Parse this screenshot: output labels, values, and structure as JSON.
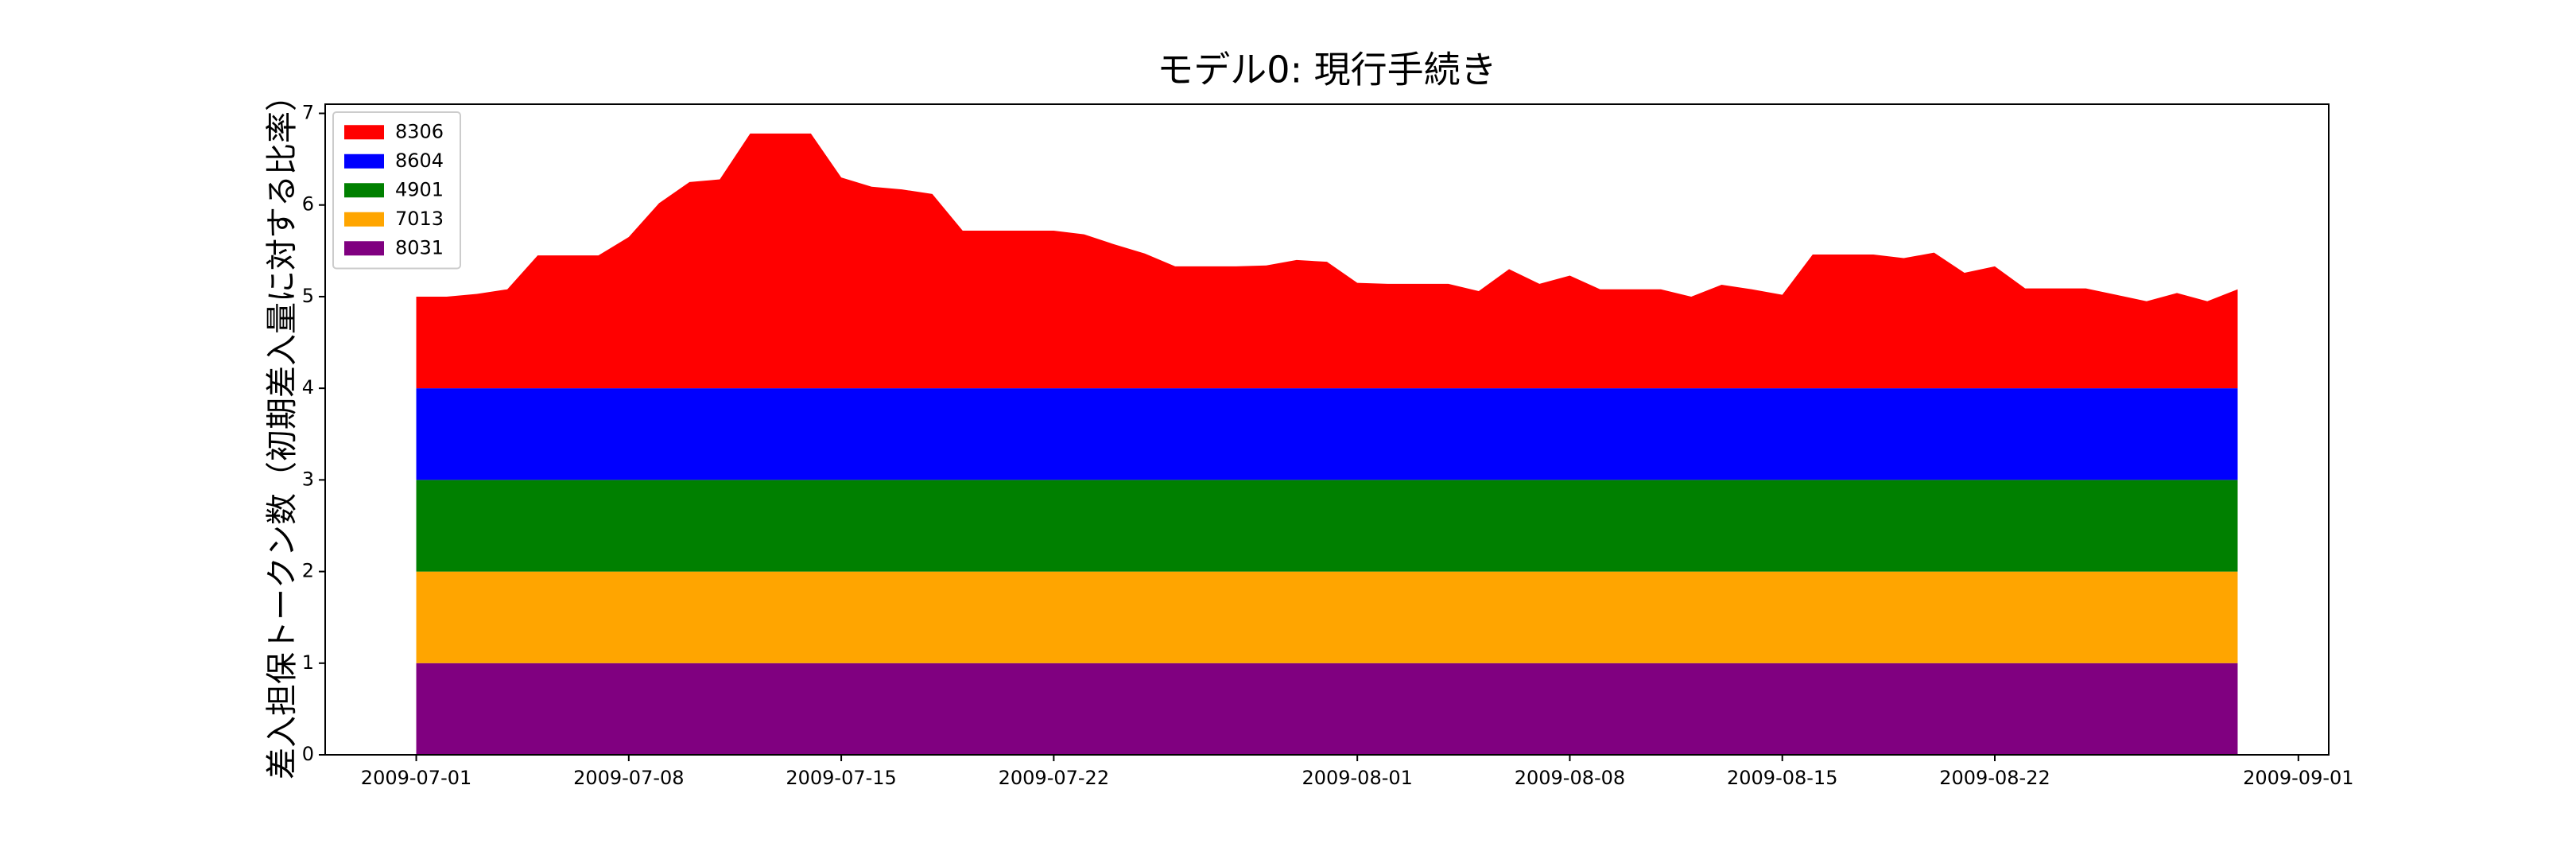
{
  "chart_data": {
    "type": "stackedarea",
    "title": "モデル0: 現行手続き",
    "y_label": "差入担保トークン数（初期差入量に対する比率）",
    "x": [
      "2009-07-01",
      "2009-07-02",
      "2009-07-03",
      "2009-07-04",
      "2009-07-05",
      "2009-07-06",
      "2009-07-07",
      "2009-07-08",
      "2009-07-09",
      "2009-07-10",
      "2009-07-11",
      "2009-07-12",
      "2009-07-13",
      "2009-07-14",
      "2009-07-15",
      "2009-07-16",
      "2009-07-17",
      "2009-07-18",
      "2009-07-19",
      "2009-07-20",
      "2009-07-21",
      "2009-07-22",
      "2009-07-23",
      "2009-07-24",
      "2009-07-25",
      "2009-07-26",
      "2009-07-27",
      "2009-07-28",
      "2009-07-29",
      "2009-07-30",
      "2009-07-31",
      "2009-08-01",
      "2009-08-02",
      "2009-08-03",
      "2009-08-04",
      "2009-08-05",
      "2009-08-06",
      "2009-08-07",
      "2009-08-08",
      "2009-08-09",
      "2009-08-10",
      "2009-08-11",
      "2009-08-12",
      "2009-08-13",
      "2009-08-14",
      "2009-08-15",
      "2009-08-16",
      "2009-08-17",
      "2009-08-18",
      "2009-08-19",
      "2009-08-20",
      "2009-08-21",
      "2009-08-22",
      "2009-08-23",
      "2009-08-24",
      "2009-08-25",
      "2009-08-26",
      "2009-08-27",
      "2009-08-28",
      "2009-08-29",
      "2009-08-30"
    ],
    "series": [
      {
        "name": "8306",
        "color": "#ff0000",
        "values": [
          1.0,
          1.0,
          1.03,
          1.08,
          1.45,
          1.45,
          1.45,
          1.65,
          2.02,
          2.25,
          2.28,
          2.78,
          2.78,
          2.78,
          2.3,
          2.2,
          2.17,
          2.12,
          1.72,
          1.72,
          1.72,
          1.72,
          1.68,
          1.57,
          1.47,
          1.33,
          1.33,
          1.33,
          1.34,
          1.4,
          1.38,
          1.15,
          1.14,
          1.14,
          1.14,
          1.06,
          1.3,
          1.14,
          1.23,
          1.08,
          1.08,
          1.08,
          1.0,
          1.13,
          1.08,
          1.02,
          1.46,
          1.46,
          1.46,
          1.42,
          1.48,
          1.26,
          1.33,
          1.09,
          1.09,
          1.09,
          1.02,
          0.95,
          1.04,
          0.95,
          1.08
        ]
      },
      {
        "name": "8604",
        "color": "#0000ff",
        "values": [
          1,
          1,
          1,
          1,
          1,
          1,
          1,
          1,
          1,
          1,
          1,
          1,
          1,
          1,
          1,
          1,
          1,
          1,
          1,
          1,
          1,
          1,
          1,
          1,
          1,
          1,
          1,
          1,
          1,
          1,
          1,
          1,
          1,
          1,
          1,
          1,
          1,
          1,
          1,
          1,
          1,
          1,
          1,
          1,
          1,
          1,
          1,
          1,
          1,
          1,
          1,
          1,
          1,
          1,
          1,
          1,
          1,
          1,
          1,
          1,
          1
        ]
      },
      {
        "name": "4901",
        "color": "#008000",
        "values": [
          1,
          1,
          1,
          1,
          1,
          1,
          1,
          1,
          1,
          1,
          1,
          1,
          1,
          1,
          1,
          1,
          1,
          1,
          1,
          1,
          1,
          1,
          1,
          1,
          1,
          1,
          1,
          1,
          1,
          1,
          1,
          1,
          1,
          1,
          1,
          1,
          1,
          1,
          1,
          1,
          1,
          1,
          1,
          1,
          1,
          1,
          1,
          1,
          1,
          1,
          1,
          1,
          1,
          1,
          1,
          1,
          1,
          1,
          1,
          1,
          1
        ]
      },
      {
        "name": "7013",
        "color": "#ffa500",
        "values": [
          1,
          1,
          1,
          1,
          1,
          1,
          1,
          1,
          1,
          1,
          1,
          1,
          1,
          1,
          1,
          1,
          1,
          1,
          1,
          1,
          1,
          1,
          1,
          1,
          1,
          1,
          1,
          1,
          1,
          1,
          1,
          1,
          1,
          1,
          1,
          1,
          1,
          1,
          1,
          1,
          1,
          1,
          1,
          1,
          1,
          1,
          1,
          1,
          1,
          1,
          1,
          1,
          1,
          1,
          1,
          1,
          1,
          1,
          1,
          1,
          1
        ]
      },
      {
        "name": "8031",
        "color": "#800080",
        "values": [
          1,
          1,
          1,
          1,
          1,
          1,
          1,
          1,
          1,
          1,
          1,
          1,
          1,
          1,
          1,
          1,
          1,
          1,
          1,
          1,
          1,
          1,
          1,
          1,
          1,
          1,
          1,
          1,
          1,
          1,
          1,
          1,
          1,
          1,
          1,
          1,
          1,
          1,
          1,
          1,
          1,
          1,
          1,
          1,
          1,
          1,
          1,
          1,
          1,
          1,
          1,
          1,
          1,
          1,
          1,
          1,
          1,
          1,
          1,
          1,
          1
        ]
      }
    ],
    "xlim": [
      "2009-06-28",
      "2009-09-02"
    ],
    "xticks": [
      "2009-07-01",
      "2009-07-08",
      "2009-07-15",
      "2009-07-22",
      "2009-08-01",
      "2009-08-08",
      "2009-08-15",
      "2009-08-22",
      "2009-09-01"
    ],
    "ylim": [
      0,
      7.1
    ],
    "yticks": [
      0,
      1,
      2,
      3,
      4,
      5,
      6,
      7
    ],
    "legend": "upper left"
  }
}
